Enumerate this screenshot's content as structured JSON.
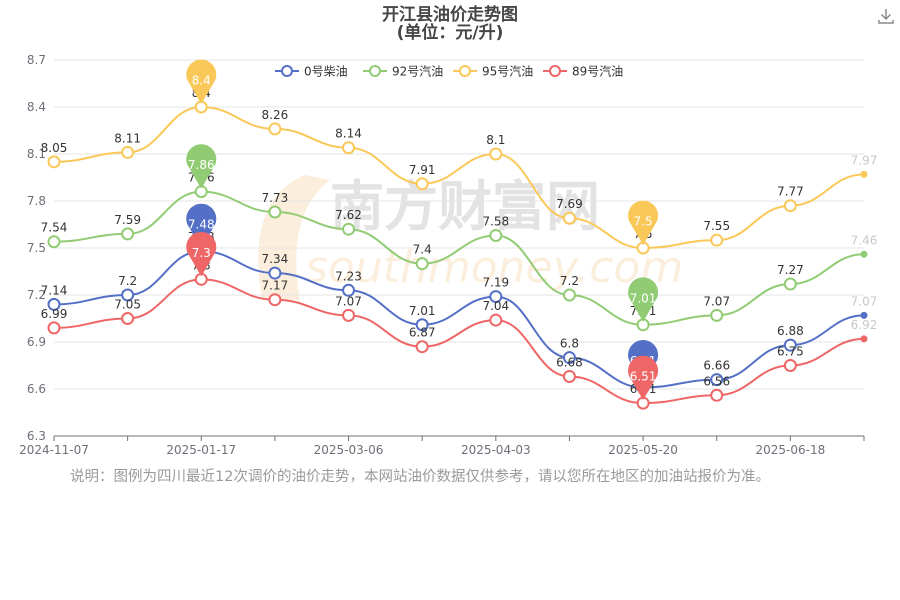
{
  "header": {
    "title": "开江县油价走势图",
    "subtitle": "(单位：元/升)"
  },
  "icons": {
    "download": "download-icon"
  },
  "footnote": "说明：图例为四川最近12次调价的油价走势，本网站油价数据仅供参考，请以您所在地区的加油站报价为准。",
  "watermark": {
    "cn": "南方财富网",
    "en": "southmoney.com"
  },
  "chart_data": {
    "type": "line",
    "title": "开江县油价走势图",
    "subtitle": "(单位：元/升)",
    "x": [
      "2024-11-07",
      "",
      "2025-01-17",
      "",
      "2025-03-06",
      "",
      "2025-04-03",
      "",
      "2025-05-20",
      "",
      "2025-06-18",
      ""
    ],
    "x_ticks": [
      "2024-11-07",
      "2025-01-17",
      "2025-03-06",
      "2025-04-03",
      "2025-05-20",
      "2025-06-18"
    ],
    "ylim": [
      6.3,
      8.7
    ],
    "y_ticks": [
      "6.3",
      "6.6",
      "6.9",
      "7.2",
      "7.5",
      "7.8",
      "8.1",
      "8.4",
      "8.7"
    ],
    "grid": true,
    "legend_position": "top-center",
    "series": [
      {
        "name": "0号柴油",
        "color": "#5470c6",
        "values": [
          7.14,
          7.2,
          7.48,
          7.34,
          7.23,
          7.01,
          7.19,
          6.8,
          6.61,
          6.66,
          6.88,
          7.07
        ],
        "max_marker": 2,
        "min_marker": 8
      },
      {
        "name": "92号汽油",
        "color": "#91cc75",
        "values": [
          7.54,
          7.59,
          7.86,
          7.73,
          7.62,
          7.4,
          7.58,
          7.2,
          7.01,
          7.07,
          7.27,
          7.46
        ],
        "max_marker": 2,
        "min_marker": 8
      },
      {
        "name": "95号汽油",
        "color": "#fac858",
        "values": [
          8.05,
          8.11,
          8.4,
          8.26,
          8.14,
          7.91,
          8.1,
          7.69,
          7.5,
          7.55,
          7.77,
          7.97
        ],
        "max_marker": 2,
        "min_marker": 8
      },
      {
        "name": "89号汽油",
        "color": "#ee6666",
        "values": [
          6.99,
          7.05,
          7.3,
          7.17,
          7.07,
          6.87,
          7.04,
          6.68,
          6.51,
          6.56,
          6.75,
          6.92
        ],
        "max_marker": 2,
        "min_marker": 8
      }
    ]
  }
}
